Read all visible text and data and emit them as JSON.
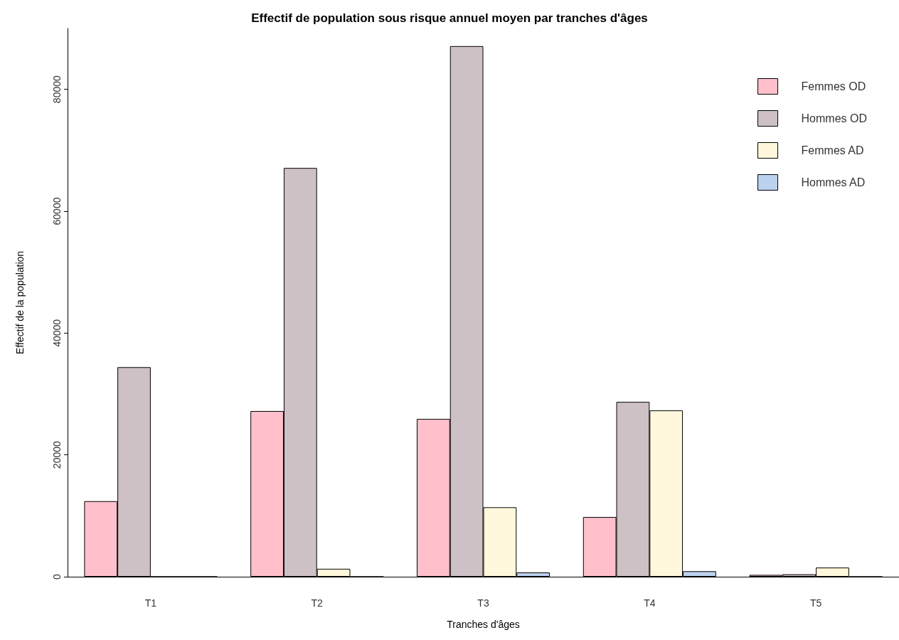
{
  "chart_data": {
    "type": "bar",
    "title": "Effectif de population sous risque annuel moyen par tranches d'âges",
    "xlabel": "Tranches d'âges",
    "ylabel": "Effectif de la population",
    "categories": [
      "T1",
      "T2",
      "T3",
      "T4",
      "T5"
    ],
    "series": [
      {
        "name": "Femmes OD",
        "color": "#ffc0cb",
        "values": [
          12400,
          27200,
          25900,
          9800,
          300
        ]
      },
      {
        "name": "Hommes OD",
        "color": "#cdc1c5",
        "values": [
          34400,
          67100,
          87100,
          28700,
          400
        ]
      },
      {
        "name": "Femmes AD",
        "color": "#fff8dc",
        "values": [
          0,
          1300,
          11400,
          27300,
          1500
        ]
      },
      {
        "name": "Hommes AD",
        "color": "#bcd2ee",
        "values": [
          0,
          0,
          700,
          900,
          0
        ]
      }
    ],
    "ylim": [
      0,
      90000
    ],
    "yticks": [
      0,
      20000,
      40000,
      60000,
      80000
    ],
    "grid": false,
    "legend": "top right"
  }
}
